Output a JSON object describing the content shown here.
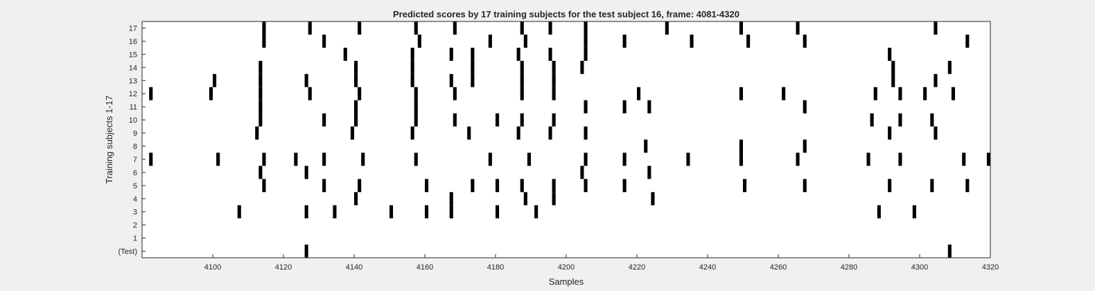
{
  "chart_data": {
    "type": "heatmap",
    "title": "Predicted scores by 17 training subjects for the test subject 16, frame: 4081-4320",
    "xlabel": "Samples",
    "ylabel": "Training subjects 1-17",
    "xlim": [
      4081,
      4320
    ],
    "x_ticks": [
      4100,
      4120,
      4140,
      4160,
      4180,
      4200,
      4220,
      4240,
      4260,
      4280,
      4300,
      4320
    ],
    "y_rows": [
      "(Test)",
      "1",
      "2",
      "3",
      "4",
      "5",
      "6",
      "7",
      "8",
      "9",
      "10",
      "11",
      "12",
      "13",
      "14",
      "15",
      "16",
      "17"
    ],
    "grid": false,
    "colors": {
      "marker": "#000000",
      "background": "#ffffff",
      "figure": "#f0f0f0"
    },
    "series": [
      {
        "name": "(Test)",
        "values": [
          4127,
          4309
        ]
      },
      {
        "name": "1",
        "values": []
      },
      {
        "name": "2",
        "values": []
      },
      {
        "name": "3",
        "values": [
          4108,
          4127,
          4135,
          4151,
          4161,
          4168,
          4181,
          4192,
          4289,
          4299
        ]
      },
      {
        "name": "4",
        "values": [
          4141,
          4168,
          4189,
          4197,
          4225
        ]
      },
      {
        "name": "5",
        "values": [
          4115,
          4132,
          4142,
          4161,
          4174,
          4181,
          4188,
          4197,
          4206,
          4217,
          4251,
          4268,
          4292,
          4304,
          4314
        ]
      },
      {
        "name": "6",
        "values": [
          4114,
          4127,
          4205,
          4224
        ]
      },
      {
        "name": "7",
        "values": [
          4083,
          4102,
          4115,
          4124,
          4132,
          4143,
          4158,
          4179,
          4190,
          4206,
          4217,
          4235,
          4250,
          4266,
          4286,
          4295,
          4313,
          4320
        ]
      },
      {
        "name": "8",
        "values": [
          4223,
          4250,
          4268
        ]
      },
      {
        "name": "9",
        "values": [
          4113,
          4140,
          4157,
          4173,
          4187,
          4196,
          4206,
          4292,
          4305
        ]
      },
      {
        "name": "10",
        "values": [
          4114,
          4132,
          4141,
          4158,
          4169,
          4181,
          4188,
          4197,
          4287,
          4295,
          4304
        ]
      },
      {
        "name": "11",
        "values": [
          4114,
          4141,
          4158,
          4206,
          4217,
          4224,
          4268
        ]
      },
      {
        "name": "12",
        "values": [
          4083,
          4100,
          4114,
          4128,
          4142,
          4158,
          4169,
          4188,
          4197,
          4221,
          4250,
          4262,
          4288,
          4295,
          4302,
          4310
        ]
      },
      {
        "name": "13",
        "values": [
          4101,
          4114,
          4127,
          4141,
          4157,
          4168,
          4174,
          4188,
          4197,
          4293,
          4305
        ]
      },
      {
        "name": "14",
        "values": [
          4114,
          4141,
          4157,
          4174,
          4188,
          4197,
          4205,
          4293,
          4309
        ]
      },
      {
        "name": "15",
        "values": [
          4138,
          4157,
          4168,
          4174,
          4187,
          4196,
          4206,
          4292
        ]
      },
      {
        "name": "16",
        "values": [
          4115,
          4132,
          4159,
          4179,
          4189,
          4206,
          4217,
          4236,
          4252,
          4268,
          4314
        ]
      },
      {
        "name": "17",
        "values": [
          4115,
          4128,
          4142,
          4158,
          4169,
          4188,
          4196,
          4206,
          4229,
          4250,
          4266,
          4305
        ]
      }
    ]
  }
}
